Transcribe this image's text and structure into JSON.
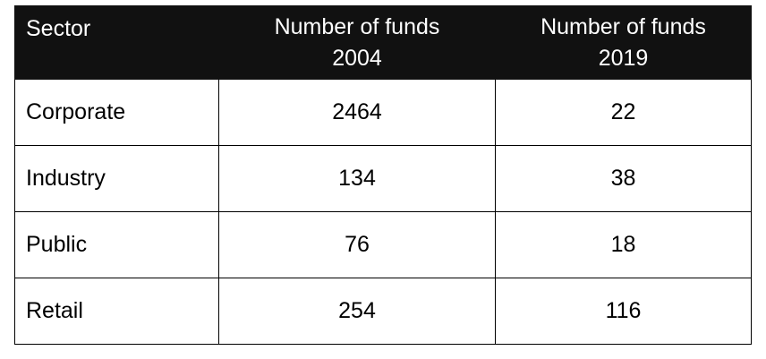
{
  "chart_data": {
    "type": "table",
    "columns": [
      {
        "label": "Sector"
      },
      {
        "label_line1": "Number of funds",
        "label_line2": "2004"
      },
      {
        "label_line1": "Number of funds",
        "label_line2": "2019"
      }
    ],
    "rows": [
      {
        "sector": "Corporate",
        "funds_2004": "2464",
        "funds_2019": "22"
      },
      {
        "sector": "Industry",
        "funds_2004": "134",
        "funds_2019": "38"
      },
      {
        "sector": "Public",
        "funds_2004": "76",
        "funds_2019": "18"
      },
      {
        "sector": "Retail",
        "funds_2004": "254",
        "funds_2019": "116"
      }
    ]
  },
  "colors": {
    "header_background": "#111111",
    "header_text": "#ffffff",
    "border": "#000000"
  }
}
